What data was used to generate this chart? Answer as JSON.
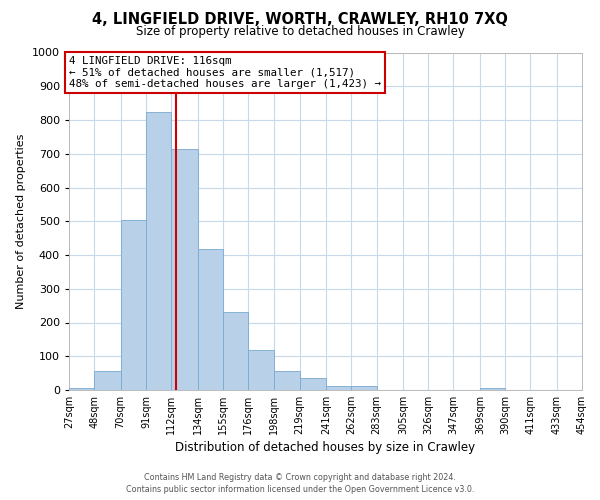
{
  "title": "4, LINGFIELD DRIVE, WORTH, CRAWLEY, RH10 7XQ",
  "subtitle": "Size of property relative to detached houses in Crawley",
  "xlabel": "Distribution of detached houses by size in Crawley",
  "ylabel": "Number of detached properties",
  "bins": [
    27,
    48,
    70,
    91,
    112,
    134,
    155,
    176,
    198,
    219,
    241,
    262,
    283,
    305,
    326,
    347,
    369,
    390,
    411,
    433,
    454
  ],
  "counts": [
    7,
    57,
    505,
    825,
    713,
    418,
    232,
    118,
    57,
    35,
    13,
    12,
    0,
    0,
    0,
    0,
    7,
    0,
    0,
    0
  ],
  "bar_color": "#b8d0e8",
  "bar_edgecolor": "#7aaad0",
  "property_value": 116,
  "vline_color": "#cc0000",
  "annotation_line1": "4 LINGFIELD DRIVE: 116sqm",
  "annotation_line2": "← 51% of detached houses are smaller (1,517)",
  "annotation_line3": "48% of semi-detached houses are larger (1,423) →",
  "annotation_box_edgecolor": "#cc0000",
  "annotation_box_facecolor": "#ffffff",
  "ylim": [
    0,
    1000
  ],
  "yticks": [
    0,
    100,
    200,
    300,
    400,
    500,
    600,
    700,
    800,
    900,
    1000
  ],
  "tick_labels": [
    "27sqm",
    "48sqm",
    "70sqm",
    "91sqm",
    "112sqm",
    "134sqm",
    "155sqm",
    "176sqm",
    "198sqm",
    "219sqm",
    "241sqm",
    "262sqm",
    "283sqm",
    "305sqm",
    "326sqm",
    "347sqm",
    "369sqm",
    "390sqm",
    "411sqm",
    "433sqm",
    "454sqm"
  ],
  "footer_line1": "Contains HM Land Registry data © Crown copyright and database right 2024.",
  "footer_line2": "Contains public sector information licensed under the Open Government Licence v3.0.",
  "background_color": "#ffffff",
  "grid_color": "#c8daea",
  "title_fontsize": 10.5,
  "subtitle_fontsize": 8.5,
  "ylabel_fontsize": 8,
  "xlabel_fontsize": 8.5
}
